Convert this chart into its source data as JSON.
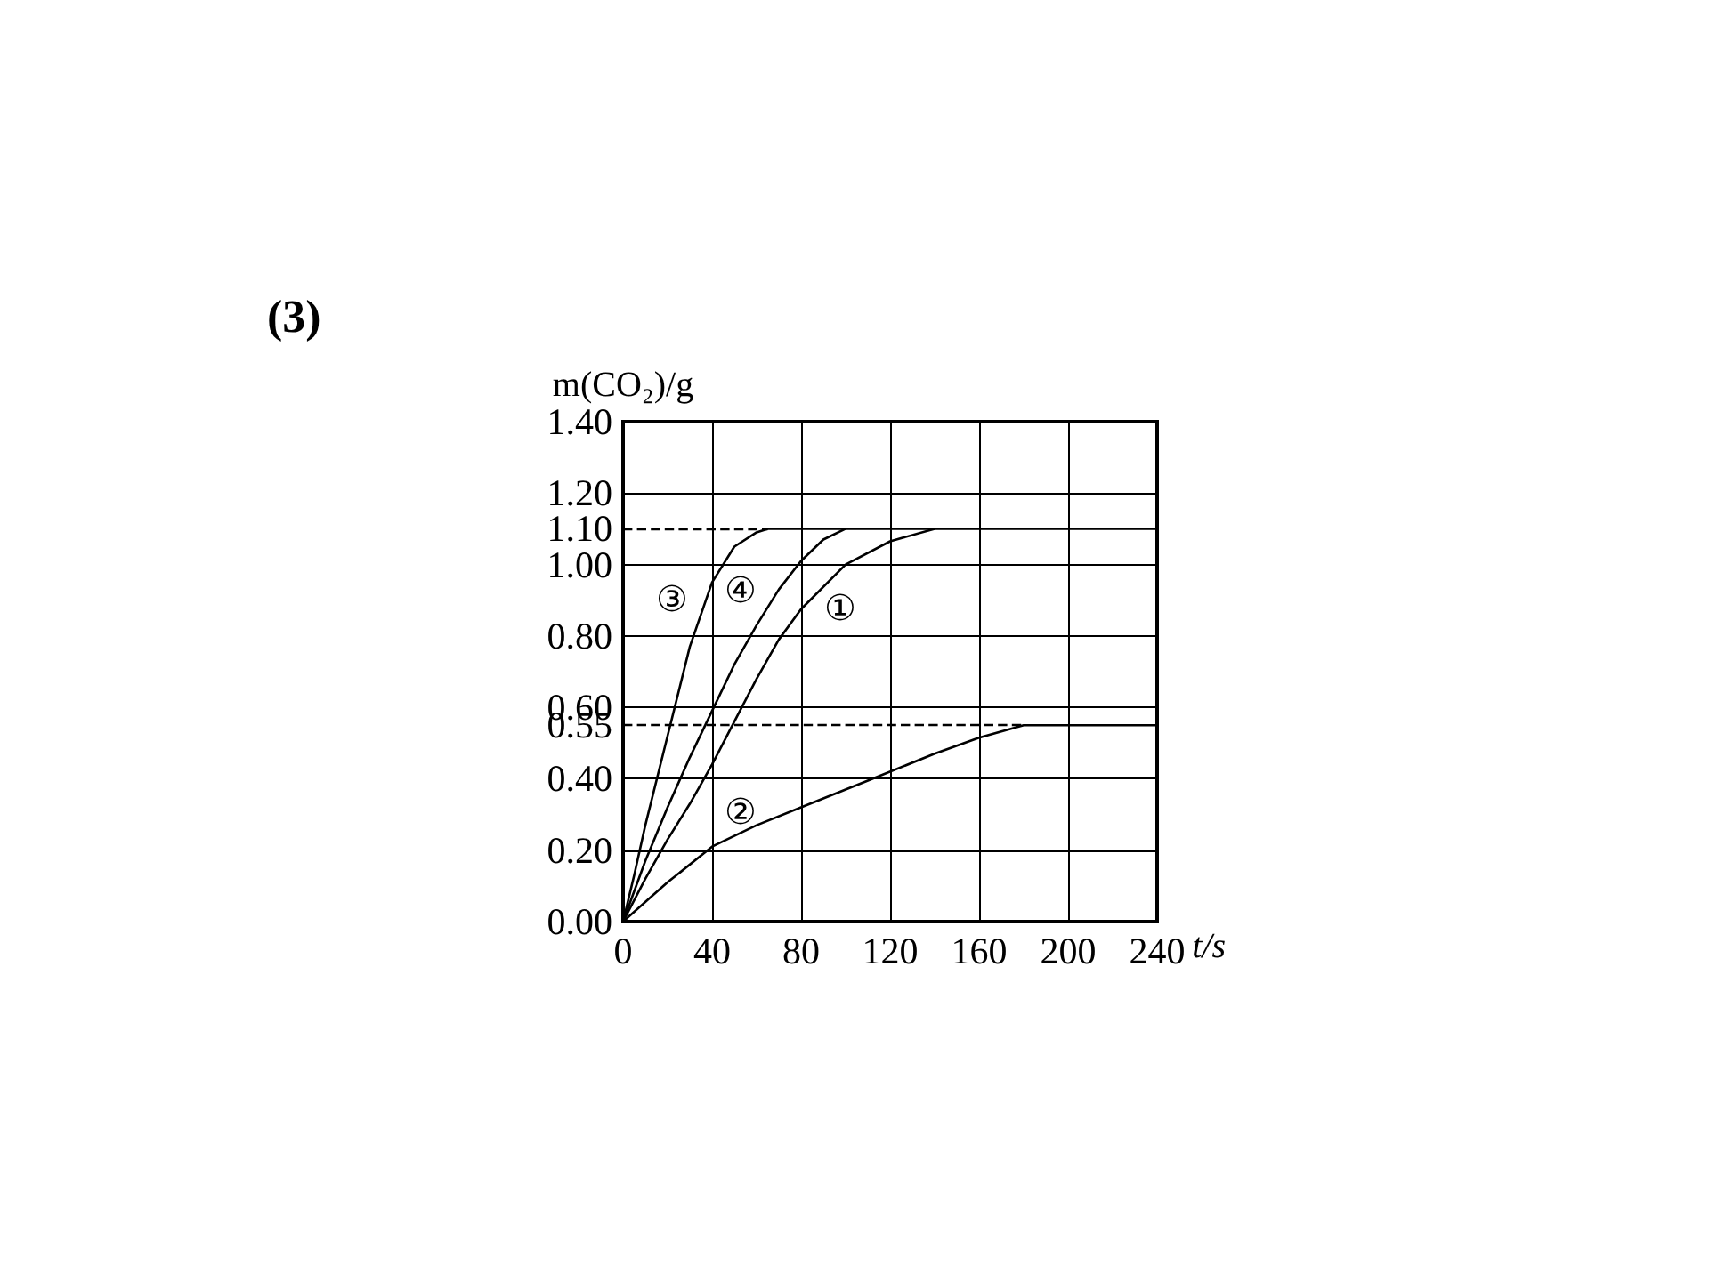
{
  "chart_data": {
    "type": "line",
    "title": "(3)",
    "xlabel": "t/s",
    "ylabel": "m(CO₂)/g",
    "xlim": [
      0,
      240
    ],
    "xticks": [
      0,
      40,
      80,
      120,
      160,
      200,
      240
    ],
    "ylim": [
      0,
      1.4
    ],
    "yticks": [
      {
        "value": 0,
        "label": "0.00"
      },
      {
        "value": 0.2,
        "label": "0.20"
      },
      {
        "value": 0.4,
        "label": "0.40"
      },
      {
        "value": 0.55,
        "label": "0.55"
      },
      {
        "value": 0.6,
        "label": "0.60"
      },
      {
        "value": 0.8,
        "label": "0.80"
      },
      {
        "value": 1.0,
        "label": "1.00"
      },
      {
        "value": 1.1,
        "label": "1.10"
      },
      {
        "value": 1.2,
        "label": "1.20"
      },
      {
        "value": 1.4,
        "label": "1.40"
      }
    ],
    "grid": true,
    "marker": "none",
    "line_style": "solid",
    "series": [
      {
        "name": "①",
        "color": "#000000",
        "x": [
          0,
          10,
          20,
          30,
          40,
          50,
          60,
          70,
          80,
          100,
          120,
          140
        ],
        "values": [
          0,
          0.12,
          0.23,
          0.33,
          0.44,
          0.56,
          0.68,
          0.79,
          0.875,
          1.0,
          1.065,
          1.1
        ]
      },
      {
        "name": "②",
        "color": "#000000",
        "x": [
          0,
          20,
          40,
          60,
          80,
          100,
          112,
          140,
          160,
          180,
          240
        ],
        "values": [
          0,
          0.11,
          0.21,
          0.27,
          0.32,
          0.37,
          0.4,
          0.47,
          0.515,
          0.55,
          0.55
        ]
      },
      {
        "name": "③",
        "color": "#000000",
        "x": [
          0,
          5,
          10,
          20,
          30,
          40,
          50,
          60,
          65,
          240
        ],
        "values": [
          0,
          0.13,
          0.27,
          0.52,
          0.77,
          0.95,
          1.05,
          1.09,
          1.1,
          1.1
        ]
      },
      {
        "name": "④",
        "color": "#000000",
        "x": [
          0,
          10,
          20,
          30,
          40,
          50,
          60,
          70,
          80,
          90,
          100
        ],
        "values": [
          0,
          0.17,
          0.32,
          0.46,
          0.59,
          0.72,
          0.83,
          0.93,
          1.01,
          1.07,
          1.1
        ]
      }
    ],
    "ref_lines": [
      {
        "axis": "y",
        "value": 1.1,
        "line_style": "dashed"
      },
      {
        "axis": "y",
        "value": 0.55,
        "line_style": "dashed"
      }
    ]
  }
}
